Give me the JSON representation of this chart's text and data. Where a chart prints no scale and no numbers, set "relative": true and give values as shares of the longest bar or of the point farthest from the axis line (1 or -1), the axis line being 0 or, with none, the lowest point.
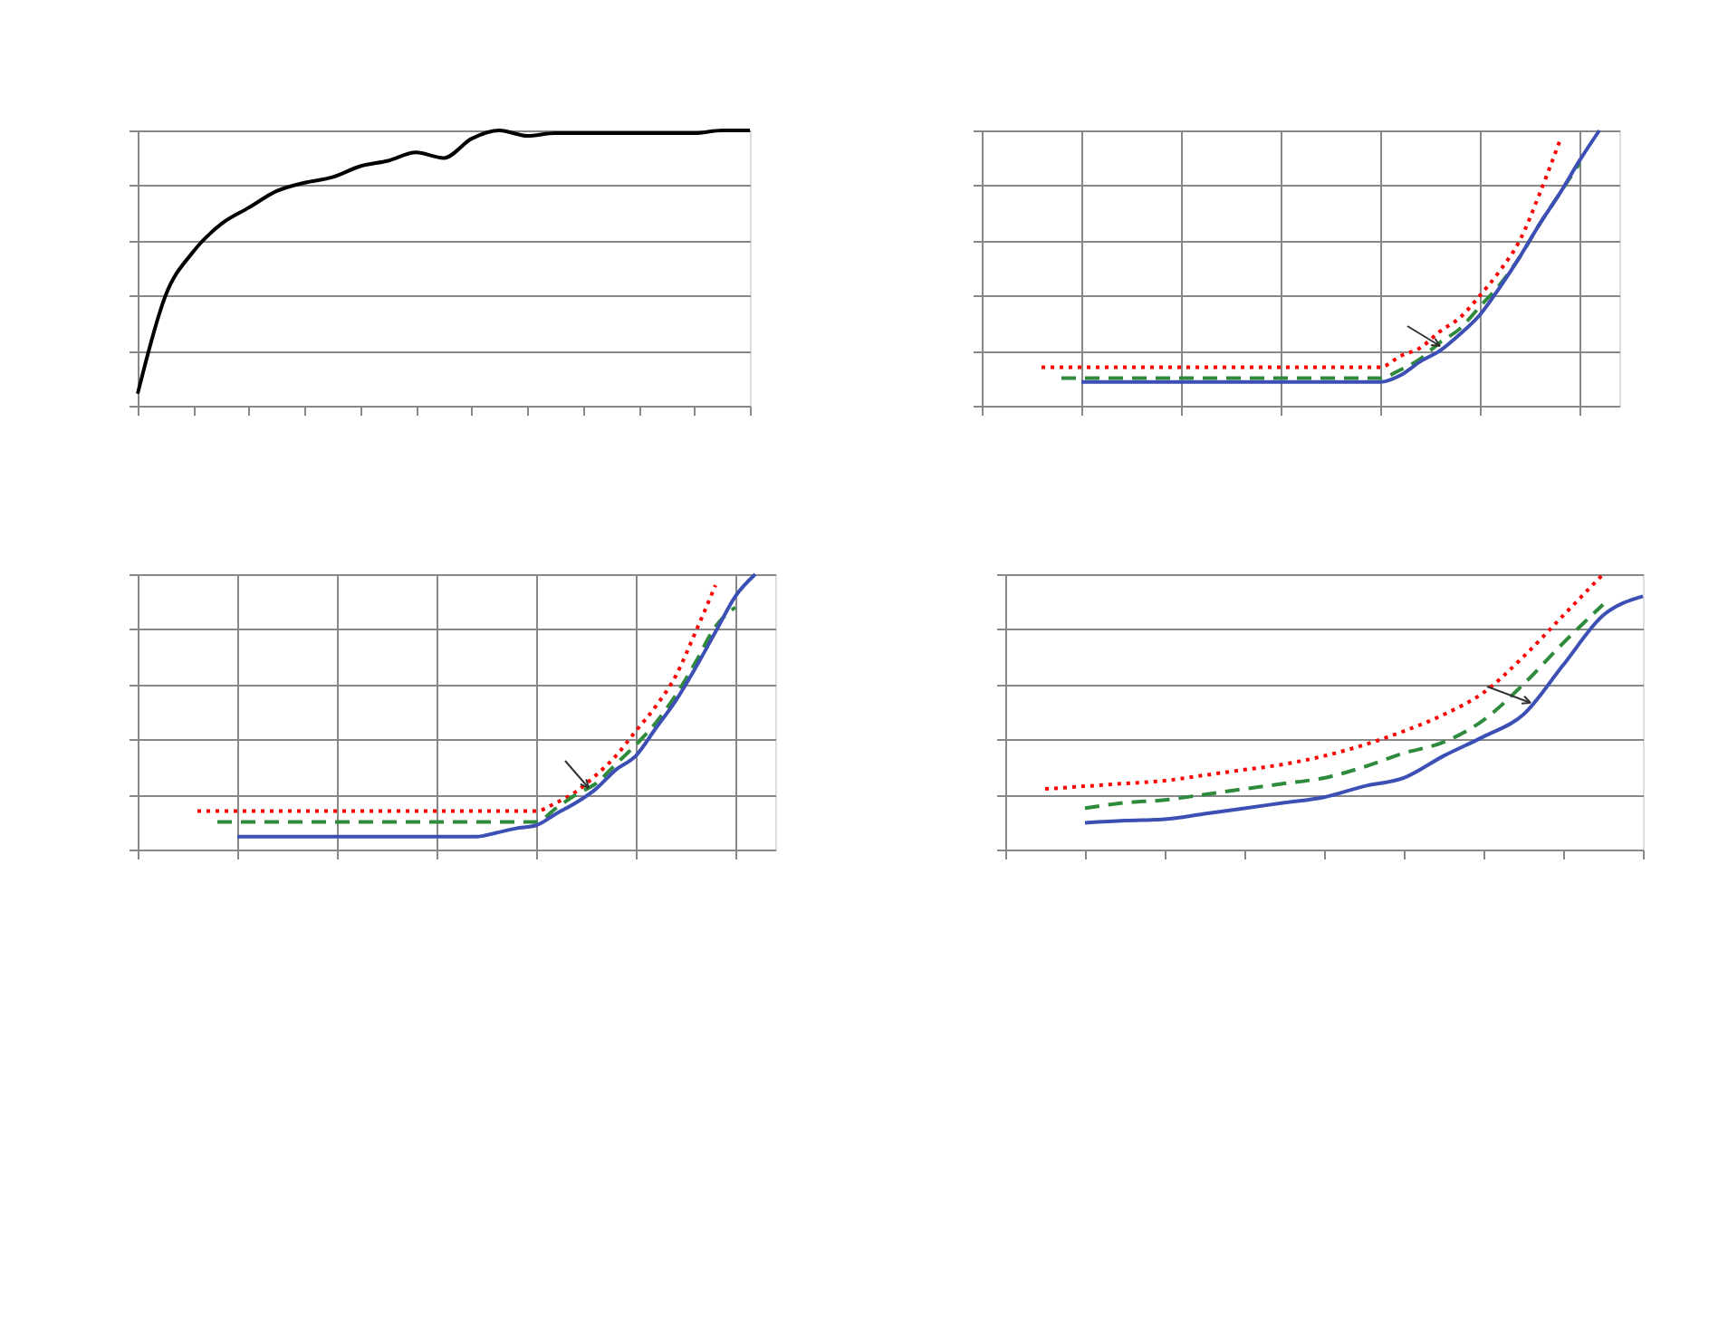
{
  "chart_data": [
    {
      "type": "line",
      "relative": true,
      "grid": "y",
      "tick_labels": false,
      "categories": [
        null,
        null,
        null,
        null,
        null,
        null,
        null,
        null,
        null,
        null,
        null,
        null,
        null,
        null,
        null,
        null,
        null,
        null,
        null,
        null,
        null,
        null,
        null
      ],
      "series": [
        {
          "color": "#000000",
          "line_style": "solid",
          "values": [
            0.044,
            0.4,
            0.56,
            0.66,
            0.72,
            0.78,
            0.81,
            0.83,
            0.87,
            0.89,
            0.92,
            0.9,
            0.97,
            1.0,
            0.98,
            0.99,
            0.99,
            0.99,
            0.99,
            0.99,
            0.99,
            1.0,
            1.0
          ]
        }
      ]
    },
    {
      "type": "line",
      "relative": true,
      "grid": true,
      "tick_labels": false,
      "categories": [
        null,
        null,
        null,
        null,
        null,
        null,
        null,
        null,
        null,
        null,
        null,
        null,
        null,
        null,
        null,
        null,
        null,
        null,
        null,
        null,
        null,
        null,
        null,
        null,
        null,
        null,
        null,
        null,
        null,
        null,
        null,
        null,
        null
      ],
      "series": [
        {
          "color": "#ff0000",
          "line_style": "dotted",
          "values": [
            null,
            null,
            null,
            0.14,
            0.14,
            0.14,
            0.14,
            0.14,
            0.14,
            0.14,
            0.14,
            0.14,
            0.14,
            0.14,
            0.14,
            0.14,
            0.14,
            0.14,
            0.14,
            0.14,
            0.14,
            0.18,
            0.21,
            0.27,
            0.32,
            0.4,
            0.49,
            0.6,
            0.77,
            0.96,
            null,
            null,
            null
          ]
        },
        {
          "color": "#2e8b3c",
          "line_style": "dashed",
          "values": [
            null,
            null,
            null,
            null,
            0.1,
            0.1,
            0.1,
            0.1,
            0.1,
            0.1,
            0.1,
            0.1,
            0.1,
            0.1,
            0.1,
            0.1,
            0.1,
            0.1,
            0.1,
            0.1,
            0.1,
            0.13,
            0.17,
            0.23,
            0.28,
            0.36,
            0.44,
            0.54,
            0.66,
            0.77,
            0.88,
            null,
            null
          ]
        },
        {
          "color": "#3c4fb4",
          "line_style": "solid",
          "values": [
            null,
            null,
            null,
            null,
            null,
            0.086,
            0.086,
            0.086,
            0.086,
            0.086,
            0.086,
            0.086,
            0.086,
            0.086,
            0.086,
            0.086,
            0.086,
            0.086,
            0.086,
            0.086,
            0.086,
            0.11,
            0.16,
            0.2,
            0.26,
            0.33,
            0.43,
            0.54,
            0.66,
            0.77,
            0.89,
            1.0,
            null
          ]
        }
      ]
    },
    {
      "type": "line",
      "relative": true,
      "grid": true,
      "tick_labels": false,
      "categories": [
        null,
        null,
        null,
        null,
        null,
        null,
        null,
        null,
        null,
        null,
        null,
        null,
        null,
        null,
        null,
        null,
        null,
        null,
        null,
        null,
        null,
        null,
        null,
        null,
        null,
        null,
        null,
        null,
        null,
        null,
        null,
        null,
        null
      ],
      "series": [
        {
          "color": "#ff0000",
          "line_style": "dotted",
          "values": [
            null,
            null,
            null,
            0.14,
            0.14,
            0.14,
            0.14,
            0.14,
            0.14,
            0.14,
            0.14,
            0.14,
            0.14,
            0.14,
            0.14,
            0.14,
            0.14,
            0.14,
            0.14,
            0.14,
            0.14,
            0.17,
            0.21,
            0.27,
            0.34,
            0.43,
            0.52,
            0.63,
            0.79,
            0.96,
            null,
            null,
            null
          ]
        },
        {
          "color": "#2e8b3c",
          "line_style": "dashed",
          "values": [
            null,
            null,
            null,
            null,
            0.1,
            0.1,
            0.1,
            0.1,
            0.1,
            0.1,
            0.1,
            0.1,
            0.1,
            0.1,
            0.1,
            0.1,
            0.1,
            0.1,
            0.1,
            0.1,
            0.1,
            0.15,
            0.2,
            0.24,
            0.31,
            0.38,
            0.46,
            0.56,
            0.68,
            0.81,
            0.88,
            null,
            null
          ]
        },
        {
          "color": "#3c4fb4",
          "line_style": "solid",
          "values": [
            null,
            null,
            null,
            null,
            null,
            0.047,
            0.047,
            0.047,
            0.047,
            0.047,
            0.047,
            0.047,
            0.047,
            0.047,
            0.047,
            0.047,
            0.047,
            0.047,
            0.061,
            0.077,
            0.088,
            0.13,
            0.17,
            0.22,
            0.29,
            0.34,
            0.44,
            0.54,
            0.66,
            0.79,
            0.92,
            1.0,
            null
          ]
        }
      ]
    },
    {
      "type": "line",
      "relative": true,
      "grid": "y",
      "tick_labels": false,
      "categories": [
        null,
        null,
        null,
        null,
        null,
        null,
        null,
        null,
        null,
        null,
        null,
        null,
        null,
        null,
        null,
        null,
        null
      ],
      "series": [
        {
          "color": "#ff0000",
          "line_style": "dotted",
          "values": [
            null,
            0.22,
            0.23,
            0.24,
            0.25,
            0.27,
            0.29,
            0.31,
            0.34,
            0.38,
            0.43,
            0.49,
            0.57,
            0.7,
            0.85,
            1.0,
            null
          ]
        },
        {
          "color": "#2e8b3c",
          "line_style": "dashed",
          "values": [
            null,
            null,
            0.15,
            0.17,
            0.18,
            0.2,
            0.22,
            0.24,
            0.26,
            0.3,
            0.35,
            0.39,
            0.47,
            0.6,
            0.75,
            0.89,
            null
          ]
        },
        {
          "color": "#3c4fb4",
          "line_style": "solid",
          "values": [
            null,
            null,
            0.097,
            0.105,
            0.11,
            0.13,
            0.15,
            0.17,
            0.19,
            0.23,
            0.26,
            0.34,
            0.41,
            0.49,
            0.67,
            0.85,
            0.92
          ]
        }
      ]
    }
  ]
}
